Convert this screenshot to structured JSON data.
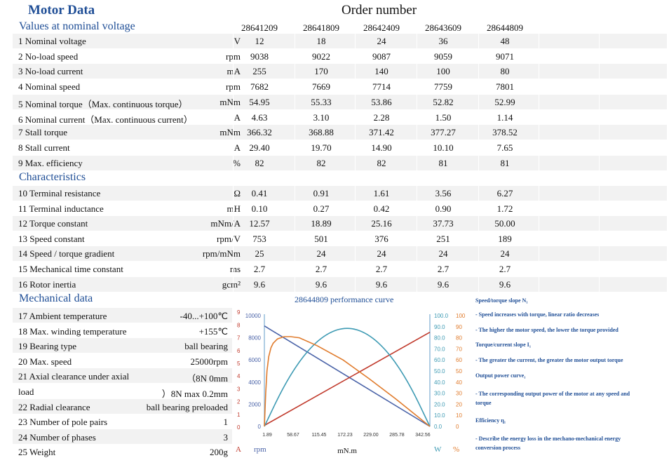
{
  "header": {
    "title": "Motor Data",
    "order_label": "Order number"
  },
  "sections": {
    "nominal": "Values at nominal voltage",
    "characteristics": "Characteristics",
    "mechanical": "Mechanical data"
  },
  "order_numbers": [
    "28641209",
    "28641809",
    "28642409",
    "28643609",
    "28644809"
  ],
  "nominal_rows": [
    {
      "label": "1 Nominal voltage",
      "unit": "V",
      "values": [
        "12",
        "18",
        "24",
        "36",
        "48"
      ]
    },
    {
      "label": "2 No-load speed",
      "unit": "rpm",
      "values": [
        "9038",
        "9022",
        "9087",
        "9059",
        "9071"
      ]
    },
    {
      "label": "3 No-load current",
      "unit": "mA",
      "values": [
        "255",
        "170",
        "140",
        "100",
        "80"
      ]
    },
    {
      "label": "4 Nominal speed",
      "unit": "rpm",
      "values": [
        "7682",
        "7669",
        "7714",
        "7759",
        "7801"
      ]
    },
    {
      "label": "5 Nominal torque（Max. continuous torque）",
      "unit": "mNm",
      "values": [
        "54.95",
        "55.33",
        "53.86",
        "52.82",
        "52.99"
      ]
    },
    {
      "label": "6 Nominal current（Max. continuous current）",
      "unit": "A",
      "values": [
        "4.63",
        "3.10",
        "2.28",
        "1.50",
        "1.14"
      ]
    },
    {
      "label": "7 Stall torque",
      "unit": "mNm",
      "values": [
        "366.32",
        "368.88",
        "371.42",
        "377.27",
        "378.52"
      ]
    },
    {
      "label": "8 Stall current",
      "unit": "A",
      "values": [
        "29.40",
        "19.70",
        "14.90",
        "10.10",
        "7.65"
      ]
    },
    {
      "label": "9 Max. efficiency",
      "unit": "%",
      "values": [
        "82",
        "82",
        "82",
        "81",
        "81"
      ]
    }
  ],
  "characteristic_rows": [
    {
      "label": "10 Terminal resistance",
      "unit": "Ω",
      "values": [
        "0.41",
        "0.91",
        "1.61",
        "3.56",
        "6.27"
      ]
    },
    {
      "label": "11 Terminal inductance",
      "unit": "mH",
      "values": [
        "0.10",
        "0.27",
        "0.42",
        "0.90",
        "1.72"
      ]
    },
    {
      "label": "12 Torque constant",
      "unit": "mNm/A",
      "values": [
        "12.57",
        "18.89",
        "25.16",
        "37.73",
        "50.00"
      ]
    },
    {
      "label": "13 Speed constant",
      "unit": "rpm/V",
      "values": [
        "753",
        "501",
        "376",
        "251",
        "189"
      ]
    },
    {
      "label": "14 Speed / torque gradient",
      "unit": "rpm/mNm",
      "values": [
        "25",
        "24",
        "24",
        "24",
        "24"
      ]
    },
    {
      "label": "15 Mechanical time constant",
      "unit": "ms",
      "values": [
        "2.7",
        "2.7",
        "2.7",
        "2.7",
        "2.7"
      ]
    },
    {
      "label": "16 Rotor inertia",
      "unit": "gcm²",
      "values": [
        "9.6",
        "9.6",
        "9.6",
        "9.6",
        "9.6"
      ]
    }
  ],
  "mechanical_rows": [
    {
      "label": "17 Ambient temperature",
      "value": "-40...+100℃"
    },
    {
      "label": "18 Max. winding temperature",
      "value": "+155℃"
    },
    {
      "label": "19 Bearing type",
      "value": "ball bearing"
    },
    {
      "label": "20 Max. speed",
      "value": "25000rpm"
    },
    {
      "label": "21 Axial clearance under axial",
      "value": "（8N          0mm"
    },
    {
      "label": "load",
      "value": "）8N  max 0.2mm"
    },
    {
      "label": "22 Radial clearance",
      "value": "ball bearing preloaded"
    },
    {
      "label": "23 Number of pole pairs",
      "value": "1"
    },
    {
      "label": "24 Number of phases",
      "value": "3"
    },
    {
      "label": "25 Weight",
      "value": "200g"
    }
  ],
  "chart_data": {
    "type": "line",
    "title": "28644809 performance curve",
    "xlabel": "mN.m",
    "x_ticks": [
      "1.89",
      "58.67",
      "115.45",
      "172.23",
      "229.00",
      "285.78",
      "342.56"
    ],
    "left_axis_A": {
      "label": "A",
      "ticks": [
        "0",
        "1",
        "2",
        "3",
        "4",
        "5",
        "6",
        "7",
        "8",
        "9"
      ],
      "range": [
        0,
        9
      ]
    },
    "left_axis_rpm": {
      "label": "rpm",
      "ticks": [
        "0",
        "2000",
        "4000",
        "6000",
        "8000",
        "10000"
      ],
      "range": [
        0,
        10000
      ]
    },
    "right_axis_W": {
      "label": "W",
      "ticks": [
        "0.0",
        "10.0",
        "20.0",
        "30.0",
        "40.0",
        "50.0",
        "60.0",
        "70.0",
        "80.0",
        "90.0",
        "100.0"
      ],
      "range": [
        0,
        100
      ]
    },
    "right_axis_pct": {
      "label": "%",
      "ticks": [
        "0",
        "10",
        "20",
        "30",
        "40",
        "50",
        "60",
        "70",
        "80",
        "90",
        "100"
      ],
      "range": [
        0,
        100
      ]
    },
    "series": [
      {
        "name": "Speed",
        "color": "#4a63a8",
        "axis": "rpm",
        "x": [
          0,
          378.52
        ],
        "y": [
          9071,
          0
        ]
      },
      {
        "name": "Current",
        "color": "#c0392b",
        "axis": "A",
        "x": [
          0,
          378.52
        ],
        "y": [
          0.08,
          7.65
        ]
      },
      {
        "name": "Output power",
        "color": "#3d9ab3",
        "axis": "W",
        "x": [
          0,
          47.3,
          94.6,
          141.9,
          189.3,
          236.6,
          283.9,
          331.2,
          378.52
        ],
        "y": [
          0,
          39,
          67,
          84,
          90,
          84,
          67,
          39,
          0
        ]
      },
      {
        "name": "Efficiency",
        "color": "#e07b2c",
        "axis": "%",
        "x": [
          0,
          3,
          6,
          10,
          15,
          20,
          30,
          45,
          60,
          80,
          120,
          180,
          240,
          300,
          378.52
        ],
        "y": [
          0,
          30,
          50,
          63,
          71,
          75,
          79,
          81,
          81,
          80,
          73,
          60,
          43,
          25,
          0
        ]
      }
    ],
    "colors": {
      "speed": "#4a63a8",
      "current": "#c0392b",
      "power": "#3d9ab3",
      "efficiency": "#e07b2c"
    }
  },
  "chart_notes": [
    "Speed/torque slope N₁",
    "- Speed increases with torque, linear ratio decreases",
    "- The higher the motor speed, the lower the torque provided",
    "Torque/current slope I₁",
    "- The greater the current, the greater the motor output torque",
    "Output power curve₁",
    "- The corresponding output power of the motor at any speed and",
    "torque",
    "Efficiency η₁",
    "- Describe the energy loss in the mechano-mechanical energy",
    "conversion process"
  ]
}
